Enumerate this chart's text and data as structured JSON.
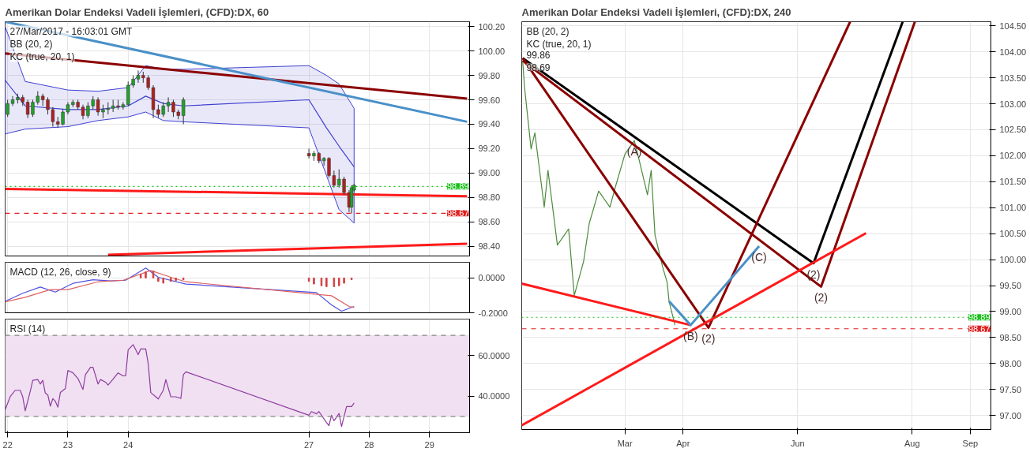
{
  "chart_data": [
    {
      "type": "candlestick",
      "title": "Amerikan Dolar Endeksi Vadeli İşlemleri, (CFD):DX, 60",
      "annotations": [
        "27/Mar/2017 - 16:03:01 GMT",
        "BB (20, 2)",
        "KC (true, 20, 1)"
      ],
      "x": [
        "2017-03-22T00:00",
        "2017-03-22T02:00",
        "2017-03-22T04:00",
        "2017-03-22T06:00",
        "2017-03-22T08:00",
        "2017-03-22T10:00",
        "2017-03-22T12:00",
        "2017-03-22T14:00",
        "2017-03-22T16:00",
        "2017-03-22T18:00",
        "2017-03-22T20:00",
        "2017-03-22T22:00",
        "2017-03-23T00:00",
        "2017-03-23T02:00",
        "2017-03-23T04:00",
        "2017-03-23T06:00",
        "2017-03-23T08:00",
        "2017-03-23T10:00",
        "2017-03-23T12:00",
        "2017-03-23T14:00",
        "2017-03-23T16:00",
        "2017-03-23T18:00",
        "2017-03-23T20:00",
        "2017-03-23T22:00",
        "2017-03-24T00:00",
        "2017-03-24T02:00",
        "2017-03-24T04:00",
        "2017-03-24T06:00",
        "2017-03-24T08:00",
        "2017-03-24T10:00",
        "2017-03-24T12:00",
        "2017-03-24T14:00",
        "2017-03-24T16:00",
        "2017-03-24T18:00",
        "2017-03-24T20:00",
        "2017-03-24T22:00",
        "2017-03-27T00:00",
        "2017-03-27T02:00",
        "2017-03-27T04:00",
        "2017-03-27T06:00",
        "2017-03-27T08:00",
        "2017-03-27T10:00",
        "2017-03-27T12:00",
        "2017-03-27T14:00",
        "2017-03-27T16:00",
        "2017-03-27T17:00",
        "2017-03-27T18:00"
      ],
      "ohlc": [
        [
          99.48,
          99.6,
          99.46,
          99.57
        ],
        [
          99.57,
          99.63,
          99.55,
          99.6
        ],
        [
          99.6,
          99.65,
          99.57,
          99.62
        ],
        [
          99.62,
          99.64,
          99.55,
          99.58
        ],
        [
          99.58,
          99.6,
          99.45,
          99.48
        ],
        [
          99.48,
          99.6,
          99.46,
          99.58
        ],
        [
          99.58,
          99.67,
          99.56,
          99.63
        ],
        [
          99.63,
          99.65,
          99.55,
          99.6
        ],
        [
          99.6,
          99.62,
          99.48,
          99.52
        ],
        [
          99.52,
          99.54,
          99.38,
          99.42
        ],
        [
          99.42,
          99.46,
          99.37,
          99.4
        ],
        [
          99.4,
          99.52,
          99.39,
          99.5
        ],
        [
          99.5,
          99.58,
          99.48,
          99.56
        ],
        [
          99.56,
          99.6,
          99.54,
          99.58
        ],
        [
          99.58,
          99.6,
          99.52,
          99.54
        ],
        [
          99.54,
          99.56,
          99.44,
          99.47
        ],
        [
          99.47,
          99.58,
          99.45,
          99.55
        ],
        [
          99.55,
          99.63,
          99.52,
          99.6
        ],
        [
          99.6,
          99.62,
          99.47,
          99.5
        ],
        [
          99.5,
          99.56,
          99.45,
          99.52
        ],
        [
          99.52,
          99.58,
          99.48,
          99.53
        ],
        [
          99.53,
          99.6,
          99.5,
          99.55
        ],
        [
          99.55,
          99.6,
          99.52,
          99.54
        ],
        [
          99.54,
          99.58,
          99.52,
          99.56
        ],
        [
          99.56,
          99.75,
          99.55,
          99.72
        ],
        [
          99.72,
          99.8,
          99.7,
          99.77
        ],
        [
          99.77,
          99.84,
          99.74,
          99.8
        ],
        [
          99.8,
          99.83,
          99.74,
          99.78
        ],
        [
          99.78,
          99.8,
          99.68,
          99.7
        ],
        [
          99.7,
          99.72,
          99.45,
          99.52
        ],
        [
          99.52,
          99.56,
          99.45,
          99.48
        ],
        [
          99.48,
          99.58,
          99.46,
          99.55
        ],
        [
          99.55,
          99.62,
          99.5,
          99.58
        ],
        [
          99.58,
          99.6,
          99.46,
          99.5
        ],
        [
          99.5,
          99.52,
          99.44,
          99.47
        ],
        [
          99.47,
          99.62,
          99.4,
          99.6
        ],
        [
          99.16,
          99.2,
          99.12,
          99.14
        ],
        [
          99.14,
          99.18,
          99.1,
          99.16
        ],
        [
          99.16,
          99.17,
          99.08,
          99.1
        ],
        [
          99.1,
          99.13,
          99.06,
          99.12
        ],
        [
          99.12,
          99.13,
          98.96,
          98.98
        ],
        [
          98.98,
          99.02,
          98.88,
          98.9
        ],
        [
          98.9,
          99.03,
          98.88,
          98.95
        ],
        [
          98.95,
          98.97,
          98.82,
          98.84
        ],
        [
          98.84,
          98.86,
          98.68,
          98.72
        ],
        [
          98.72,
          98.9,
          98.67,
          98.88
        ],
        [
          98.86,
          98.91,
          98.85,
          98.9
        ]
      ],
      "colors": [
        "#22a02a",
        "#22a02a",
        "#22a02a",
        "#b02020",
        "#b02020",
        "#22a02a",
        "#22a02a",
        "#b02020",
        "#b02020",
        "#b02020",
        "#b02020",
        "#22a02a",
        "#22a02a",
        "#22a02a",
        "#b02020",
        "#b02020",
        "#22a02a",
        "#22a02a",
        "#b02020",
        "#22a02a",
        "#22a02a",
        "#22a02a",
        "#b02020",
        "#22a02a",
        "#22a02a",
        "#22a02a",
        "#22a02a",
        "#b02020",
        "#b02020",
        "#b02020",
        "#b02020",
        "#22a02a",
        "#22a02a",
        "#b02020",
        "#b02020",
        "#22a02a",
        "#b02020",
        "#22a02a",
        "#b02020",
        "#22a02a",
        "#b02020",
        "#b02020",
        "#22a02a",
        "#b02020",
        "#b02020",
        "#22a02a",
        "#22a02a"
      ],
      "series": [
        {
          "type": "line",
          "color": "#4040d0",
          "x": [
            "2017-03-21T23:00",
            "2017-03-22T07:00",
            "2017-03-23T00:00",
            "2017-03-23T12:00",
            "2017-03-24T00:00",
            "2017-03-24T07:00",
            "2017-03-24T14:00",
            "2017-03-24T22:00",
            "2017-03-27T00:00",
            "2017-03-27T07:00",
            "2017-03-27T12:00",
            "2017-03-27T18:00"
          ],
          "values": [
            99.76,
            99.55,
            99.52,
            99.52,
            99.55,
            99.63,
            99.57,
            99.55,
            99.6,
            99.37,
            99.22,
            99.05
          ],
          "lower": [
            99.32,
            99.36,
            99.38,
            99.43,
            99.46,
            99.5,
            99.43,
            99.42,
            99.37,
            98.98,
            98.7,
            98.59
          ],
          "upper": [
            100.2,
            99.75,
            99.68,
            99.67,
            99.7,
            99.88,
            99.85,
            99.85,
            99.88,
            99.8,
            99.73,
            99.53
          ]
        },
        {
          "type": "line",
          "color": "#8b0000",
          "x": [
            "2017-03-21T23:00",
            "2017-03-29T15:00"
          ],
          "values": [
            99.98,
            99.61
          ]
        },
        {
          "type": "line",
          "color": "#4a90c8",
          "x": [
            "2017-03-21T23:00",
            "2017-03-29T15:00"
          ],
          "values": [
            100.24,
            99.42
          ]
        },
        {
          "type": "line",
          "color": "#ff1a1a",
          "x": [
            "2017-03-21T23:00",
            "2017-03-29T15:00"
          ],
          "values": [
            98.87,
            98.81
          ]
        },
        {
          "type": "line",
          "color": "#ff1a1a",
          "x": [
            "2017-03-23T16:00",
            "2017-03-29T15:00"
          ],
          "values": [
            98.33,
            98.42
          ]
        }
      ],
      "ref_lines": [
        {
          "axis": "y",
          "value": 98.89,
          "label": "98.89",
          "color": "#19c019",
          "line_style": "dotted"
        },
        {
          "axis": "y",
          "value": 98.67,
          "label": "98.67",
          "color": "#e02020",
          "line_style": "dashed"
        }
      ],
      "xlim": [
        "2017-03-21T23:00",
        "2017-03-29T16:00"
      ],
      "ylim": [
        98.32,
        100.24
      ],
      "xticks": [
        {
          "value": "2017-03-22",
          "label": null
        },
        {
          "value": "2017-03-23",
          "label": null
        },
        {
          "value": "2017-03-24",
          "label": null
        },
        {
          "value": "2017-03-27",
          "label": null
        },
        {
          "value": "2017-03-28",
          "label": null
        },
        {
          "value": "2017-03-29",
          "label": null
        }
      ],
      "yticks": [
        {
          "value": 98.4,
          "label": "98.40"
        },
        {
          "value": 98.6,
          "label": "98.60"
        },
        {
          "value": 98.8,
          "label": "98.80"
        },
        {
          "value": 99.0,
          "label": "99.00"
        },
        {
          "value": 99.2,
          "label": "99.20"
        },
        {
          "value": 99.4,
          "label": "99.40"
        },
        {
          "value": 99.6,
          "label": "99.60"
        },
        {
          "value": 99.8,
          "label": "99.80"
        },
        {
          "value": 100.0,
          "label": "100.00"
        },
        {
          "value": 100.2,
          "label": "100.20"
        }
      ],
      "tick_labels": "y",
      "grid": true
    },
    {
      "type": "line",
      "annotations": [
        "MACD (12, 26, close, 9)"
      ],
      "series": [
        {
          "color": "#5050e0",
          "x": [
            "2017-03-21T23:00",
            "2017-03-22T06:00",
            "2017-03-22T13:00",
            "2017-03-22T19:00",
            "2017-03-23T02:00",
            "2017-03-23T10:00",
            "2017-03-23T17:00",
            "2017-03-23T23:00",
            "2017-03-24T07:00",
            "2017-03-24T12:00",
            "2017-03-24T23:00",
            "2017-03-27T03:00",
            "2017-03-27T09:00",
            "2017-03-27T13:00",
            "2017-03-27T18:00"
          ],
          "values": [
            -0.134,
            -0.088,
            -0.052,
            -0.081,
            -0.031,
            -0.01,
            -0.017,
            -0.013,
            0.057,
            0.004,
            -0.035,
            -0.084,
            -0.155,
            -0.191,
            -0.164
          ]
        },
        {
          "color": "#e06060",
          "x": [
            "2017-03-21T23:00",
            "2017-03-22T07:00",
            "2017-03-22T17:00",
            "2017-03-23T00:00",
            "2017-03-23T12:00",
            "2017-03-23T22:00",
            "2017-03-24T09:00",
            "2017-03-24T17:00",
            "2017-03-24T23:00",
            "2017-03-27T09:00",
            "2017-03-27T16:00",
            "2017-03-27T18:00"
          ],
          "values": [
            -0.137,
            -0.111,
            -0.067,
            -0.067,
            -0.022,
            -0.013,
            0.043,
            0.004,
            -0.022,
            -0.102,
            -0.164,
            -0.169
          ]
        },
        {
          "type": "bar",
          "color": "#d04040",
          "x": [
            "2017-03-24T05:00",
            "2017-03-24T07:00",
            "2017-03-24T10:00",
            "2017-03-24T12:00",
            "2017-03-24T14:00",
            "2017-03-24T17:00",
            "2017-03-24T19:00",
            "2017-03-24T22:00",
            "2017-03-27T00:00",
            "2017-03-27T02:00",
            "2017-03-27T05:00",
            "2017-03-27T07:00",
            "2017-03-27T10:00",
            "2017-03-27T12:00",
            "2017-03-27T14:00",
            "2017-03-27T17:00"
          ],
          "values": [
            0.02,
            0.035,
            0.04,
            -0.02,
            -0.03,
            -0.02,
            -0.015,
            -0.01,
            -0.02,
            -0.035,
            -0.045,
            -0.05,
            -0.05,
            -0.045,
            -0.03,
            -0.01
          ]
        }
      ],
      "xlim": [
        "2017-03-21T23:00",
        "2017-03-29T16:00"
      ],
      "ylim": [
        -0.2,
        0.09
      ],
      "xticks": [
        {
          "value": "2017-03-22",
          "label": null
        },
        {
          "value": "2017-03-23",
          "label": null
        },
        {
          "value": "2017-03-24",
          "label": null
        },
        {
          "value": "2017-03-27",
          "label": null
        },
        {
          "value": "2017-03-28",
          "label": null
        },
        {
          "value": "2017-03-29",
          "label": null
        }
      ],
      "yticks": [
        {
          "value": -0.2,
          "label": "-0.2000"
        },
        {
          "value": 0,
          "label": "0.0000"
        }
      ],
      "tick_labels": "y",
      "grid": true
    },
    {
      "type": "line",
      "annotations": [
        "RSI (14)"
      ],
      "series": [
        {
          "color": "#8e3c9e",
          "x": [
            "2017-03-21T23:00",
            "2017-03-22T01:00",
            "2017-03-22T03:00",
            "2017-03-22T05:00",
            "2017-03-22T06:00",
            "2017-03-22T07:00",
            "2017-03-22T09:00",
            "2017-03-22T10:00",
            "2017-03-22T12:00",
            "2017-03-22T13:00",
            "2017-03-22T14:00",
            "2017-03-22T15:00",
            "2017-03-22T16:00",
            "2017-03-22T17:00",
            "2017-03-22T18:00",
            "2017-03-22T19:00",
            "2017-03-22T20:00",
            "2017-03-22T21:00",
            "2017-03-22T23:00",
            "2017-03-23T00:00",
            "2017-03-23T02:00",
            "2017-03-23T04:00",
            "2017-03-23T06:00",
            "2017-03-23T07:00",
            "2017-03-23T09:00",
            "2017-03-23T10:00",
            "2017-03-23T12:00",
            "2017-03-23T13:00",
            "2017-03-23T15:00",
            "2017-03-23T16:00",
            "2017-03-23T18:00",
            "2017-03-23T20:00",
            "2017-03-23T22:00",
            "2017-03-23T23:00",
            "2017-03-24T00:00",
            "2017-03-24T02:00",
            "2017-03-24T04:00",
            "2017-03-24T05:00",
            "2017-03-24T07:00",
            "2017-03-24T08:00",
            "2017-03-24T09:00",
            "2017-03-24T11:00",
            "2017-03-24T12:00",
            "2017-03-24T14:00",
            "2017-03-24T15:00",
            "2017-03-24T17:00",
            "2017-03-24T19:00",
            "2017-03-24T21:00",
            "2017-03-24T22:00",
            "2017-03-24T23:00",
            "2017-03-27T00:00",
            "2017-03-27T01:00",
            "2017-03-27T03:00",
            "2017-03-27T04:00",
            "2017-03-27T07:00",
            "2017-03-27T08:00",
            "2017-03-27T09:00",
            "2017-03-27T10:00",
            "2017-03-27T12:00",
            "2017-03-27T13:00",
            "2017-03-27T15:00",
            "2017-03-27T17:00",
            "2017-03-27T18:00"
          ],
          "values": [
            33.3,
            39.7,
            42.9,
            42.9,
            39.7,
            32.8,
            42.4,
            47.8,
            48.2,
            46.0,
            47.8,
            41.5,
            40.6,
            35.1,
            38.8,
            37.5,
            34.6,
            41.8,
            43.8,
            52.7,
            51.5,
            48.7,
            43.3,
            50.6,
            54.2,
            54.2,
            46.0,
            48.2,
            46.9,
            45.5,
            48.4,
            51.5,
            50.0,
            50.0,
            62.9,
            65.4,
            60.5,
            63.3,
            63.3,
            56.0,
            41.8,
            39.7,
            38.6,
            42.9,
            48.2,
            39.7,
            39.7,
            38.9,
            50.6,
            52.0,
            30.6,
            32.4,
            31.3,
            32.4,
            27.0,
            25.5,
            30.6,
            27.9,
            31.5,
            25.1,
            34.9,
            34.9,
            36.6
          ]
        }
      ],
      "ref_lines": [
        {
          "axis": "y",
          "value": 70,
          "color": "#888888",
          "line_style": "dashed"
        },
        {
          "axis": "y",
          "value": 30,
          "color": "#888888",
          "line_style": "dashed"
        }
      ],
      "bands": [
        {
          "axis": "y",
          "from": 30,
          "to": 70,
          "color": "#f0e0f2"
        }
      ],
      "xlim": [
        "2017-03-21T23:00",
        "2017-03-29T16:00"
      ],
      "ylim": [
        22,
        78
      ],
      "xticks": [
        {
          "value": "2017-03-22",
          "label": "22"
        },
        {
          "value": "2017-03-23",
          "label": "23"
        },
        {
          "value": "2017-03-24",
          "label": "24"
        },
        {
          "value": "2017-03-27",
          "label": "27"
        },
        {
          "value": "2017-03-28",
          "label": "28"
        },
        {
          "value": "2017-03-29",
          "label": "29"
        }
      ],
      "yticks": [
        {
          "value": 40,
          "label": "40.0000"
        },
        {
          "value": 60,
          "label": "60.0000"
        }
      ],
      "grid": true
    },
    {
      "type": "line",
      "title": "Amerikan Dolar Endeksi Vadeli İşlemleri, (CFD):DX, 240",
      "annotations": [
        "BB (20, 2)",
        "KC (true, 20, 1)",
        "99.86",
        "98.69",
        {
          "text": "(A)",
          "x": "2017-03-06",
          "y": 102.29
        },
        {
          "text": "(B)",
          "x": "2017-04-05",
          "y": 98.74
        },
        {
          "text": "(2)",
          "x": "2017-04-14T12:00",
          "y": 98.69
        },
        {
          "text": "(C)",
          "x": "2017-05-11T12:00",
          "y": 100.26
        },
        {
          "text": "(2)",
          "x": "2017-06-09T12:00",
          "y": 99.93
        },
        {
          "text": "(2)",
          "x": "2017-06-13T12:00",
          "y": 99.48
        }
      ],
      "series": [
        {
          "color": "#4b8b3b",
          "x": [
            "2017-01-05T12:00",
            "2017-01-06T12:00",
            "2017-01-10",
            "2017-01-12",
            "2017-01-17",
            "2017-01-19",
            "2017-01-24",
            "2017-01-30",
            "2017-02-02",
            "2017-02-07",
            "2017-02-10",
            "2017-02-15",
            "2017-02-21",
            "2017-02-24",
            "2017-03-01",
            "2017-03-06",
            "2017-03-08T12:00",
            "2017-03-13",
            "2017-03-15",
            "2017-03-17",
            "2017-03-21",
            "2017-03-23T12:00",
            "2017-03-24T12:00",
            "2017-03-27T16:00"
          ],
          "values": [
            103.83,
            103.32,
            102.13,
            102.44,
            101.01,
            101.72,
            100.28,
            100.59,
            99.31,
            99.97,
            100.7,
            101.32,
            101.01,
            101.41,
            102.03,
            102.29,
            101.93,
            101.25,
            101.72,
            100.48,
            99.87,
            99.56,
            99.2,
            98.74
          ]
        },
        {
          "color": "#000000",
          "x": [
            "2017-01-05T12:00",
            "2017-06-09T12:00",
            "2017-07-27"
          ],
          "values": [
            103.88,
            99.93,
            104.58
          ]
        },
        {
          "color": "#8b0000",
          "x": [
            "2017-01-05T12:00",
            "2017-04-14T12:00",
            "2017-06-29"
          ],
          "values": [
            103.88,
            98.69,
            104.58
          ]
        },
        {
          "color": "#8b0000",
          "x": [
            "2017-01-05T12:00",
            "2017-06-13T12:00",
            "2017-08-02T12:00"
          ],
          "values": [
            103.83,
            99.48,
            104.58
          ]
        },
        {
          "color": "#ff1a1a",
          "x": [
            "2017-01-05",
            "2017-04-05"
          ],
          "values": [
            99.54,
            98.74
          ]
        },
        {
          "color": "#ff1a1a",
          "x": [
            "2017-01-05",
            "2017-07-07T12:00"
          ],
          "values": [
            96.81,
            100.51
          ]
        },
        {
          "color": "#4a90c8",
          "x": [
            "2017-03-24T12:00",
            "2017-04-05",
            "2017-05-11T12:00"
          ],
          "values": [
            99.2,
            98.74,
            100.26
          ]
        }
      ],
      "ref_lines": [
        {
          "axis": "y",
          "value": 98.89,
          "label": "98.89",
          "color": "#19c019",
          "line_style": "dotted"
        },
        {
          "axis": "y",
          "value": 98.67,
          "label": "98.67",
          "color": "#e02020",
          "line_style": "dashed"
        }
      ],
      "xlim": [
        "2017-01-05",
        "2017-09-12"
      ],
      "ylim": [
        96.73,
        104.58
      ],
      "xticks": [
        {
          "value": "2017-03-01",
          "label": "Mar"
        },
        {
          "value": "2017-04-01",
          "label": "Apr"
        },
        {
          "value": "2017-06-01",
          "label": "Jun"
        },
        {
          "value": "2017-08-01",
          "label": "Aug"
        },
        {
          "value": "2017-09-01",
          "label": "Sep"
        }
      ],
      "yticks": [
        {
          "value": 97.0,
          "label": "97.00"
        },
        {
          "value": 97.5,
          "label": "97.50"
        },
        {
          "value": 98.0,
          "label": "98.00"
        },
        {
          "value": 98.5,
          "label": "98.50"
        },
        {
          "value": 99.0,
          "label": "99.00"
        },
        {
          "value": 99.5,
          "label": "99.50"
        },
        {
          "value": 100.0,
          "label": "100.00"
        },
        {
          "value": 100.5,
          "label": "100.50"
        },
        {
          "value": 101.0,
          "label": "101.00"
        },
        {
          "value": 101.5,
          "label": "101.50"
        },
        {
          "value": 102.0,
          "label": "102.00"
        },
        {
          "value": 102.5,
          "label": "102.50"
        },
        {
          "value": 103.0,
          "label": "103.00"
        },
        {
          "value": 103.5,
          "label": "103.50"
        },
        {
          "value": 104.0,
          "label": "104.00"
        },
        {
          "value": 104.5,
          "label": "104.50"
        }
      ],
      "grid": true
    }
  ]
}
